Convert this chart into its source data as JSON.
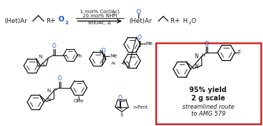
{
  "fig_width": 3.78,
  "fig_height": 1.82,
  "dpi": 100,
  "bg_color": "#ffffff",
  "black": "#1a1a1a",
  "blue": "#2255cc",
  "red_box_color": "#cc2222",
  "highlight_line1": "95% yield",
  "highlight_line2": "2 g scale",
  "highlight_line3": "streamlined route",
  "highlight_line4": "to AMG 579"
}
